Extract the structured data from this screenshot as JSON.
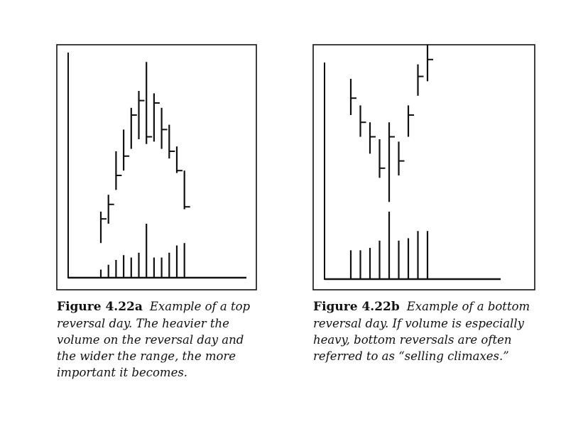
{
  "figures": [
    {
      "label": "Figure 4.22a",
      "caption": "Example of a top reversal day. The heavier the volume on the reversal day and the wider the range, the more important it becomes.",
      "chart_data": {
        "type": "bar",
        "title": "",
        "xlabel": "",
        "ylabel": "",
        "ylim": [
          0,
          100
        ],
        "price_bars": [
          {
            "high": 30,
            "low": 17,
            "close": 27
          },
          {
            "high": 37,
            "low": 25,
            "close": 33
          },
          {
            "high": 55,
            "low": 39,
            "close": 45
          },
          {
            "high": 64,
            "low": 47,
            "close": 53
          },
          {
            "high": 73,
            "low": 56,
            "close": 70
          },
          {
            "high": 80,
            "low": 60,
            "close": 76
          },
          {
            "high": 92,
            "low": 58,
            "close": 61
          },
          {
            "high": 79,
            "low": 59,
            "close": 75
          },
          {
            "high": 73,
            "low": 56,
            "close": 64
          },
          {
            "high": 66,
            "low": 52,
            "close": 55
          },
          {
            "high": 57,
            "low": 46,
            "close": 47
          },
          {
            "high": 47,
            "low": 31,
            "close": 32
          }
        ],
        "volume": [
          6,
          8,
          10,
          12,
          11,
          13,
          25,
          11,
          11,
          13,
          16,
          17
        ]
      }
    },
    {
      "label": "Figure 4.22b",
      "caption": "Example of a bottom reversal day. If volume is especially heavy, bottom reversals are often referred to as “selling climaxes.”",
      "chart_data": {
        "type": "bar",
        "title": "",
        "xlabel": "",
        "ylabel": "",
        "ylim": [
          0,
          100
        ],
        "price_bars": [
          {
            "high": 85,
            "low": 70,
            "close": 77
          },
          {
            "high": 74,
            "low": 61,
            "close": 67
          },
          {
            "high": 67,
            "low": 54,
            "close": 61
          },
          {
            "high": 60,
            "low": 44,
            "close": 48
          },
          {
            "high": 67,
            "low": 34,
            "close": 61
          },
          {
            "high": 59,
            "low": 45,
            "close": 51
          },
          {
            "high": 74,
            "low": 61,
            "close": 70
          },
          {
            "high": 91,
            "low": 78,
            "close": 86
          },
          {
            "high": 99,
            "low": 84,
            "close": 93
          }
        ],
        "volume": [
          14,
          14,
          15,
          18,
          30,
          18,
          19,
          22,
          22
        ]
      }
    }
  ]
}
